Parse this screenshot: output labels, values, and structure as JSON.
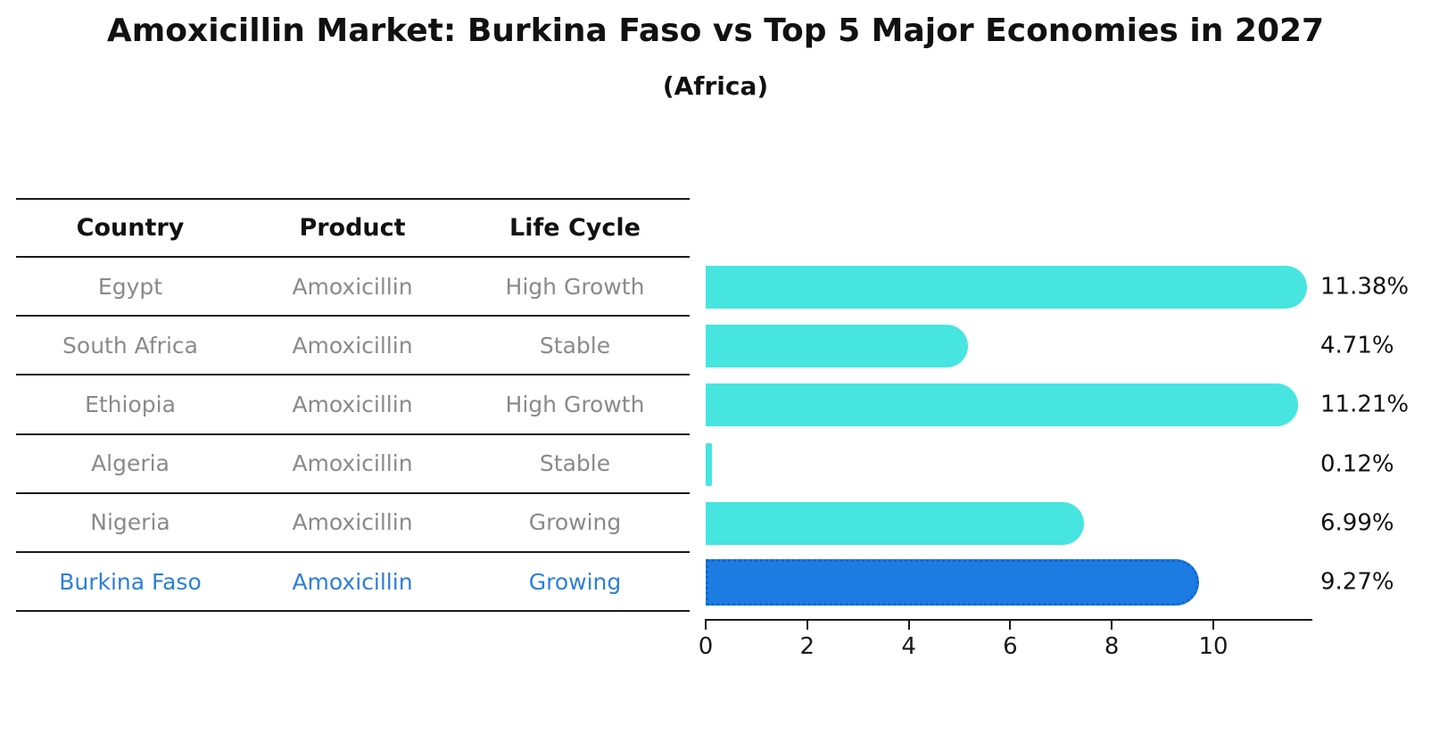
{
  "title": "Amoxicillin Market: Burkina Faso vs Top 5 Major Economies in 2027",
  "subtitle": "(Africa)",
  "table": {
    "headers": [
      "Country",
      "Product",
      "Life Cycle"
    ],
    "rows": [
      {
        "country": "Egypt",
        "product": "Amoxicillin",
        "life_cycle": "High Growth",
        "highlight": false
      },
      {
        "country": "South Africa",
        "product": "Amoxicillin",
        "life_cycle": "Stable",
        "highlight": false
      },
      {
        "country": "Ethiopia",
        "product": "Amoxicillin",
        "life_cycle": "High Growth",
        "highlight": false
      },
      {
        "country": "Algeria",
        "product": "Amoxicillin",
        "life_cycle": "Stable",
        "highlight": false
      },
      {
        "country": "Nigeria",
        "product": "Amoxicillin",
        "life_cycle": "Growing",
        "highlight": false
      },
      {
        "country": "Burkina Faso",
        "product": "Amoxicillin",
        "life_cycle": "Growing",
        "highlight": true
      }
    ]
  },
  "chart_data": {
    "type": "bar",
    "orientation": "horizontal",
    "title": "Amoxicillin Market: Burkina Faso vs Top 5 Major Economies in 2027",
    "subtitle": "(Africa)",
    "categories": [
      "Egypt",
      "South Africa",
      "Ethiopia",
      "Algeria",
      "Nigeria",
      "Burkina Faso"
    ],
    "values": [
      11.38,
      4.71,
      11.21,
      0.12,
      6.99,
      9.27
    ],
    "value_labels": [
      "11.38%",
      "4.71%",
      "11.21%",
      "0.12%",
      "6.99%",
      "9.27%"
    ],
    "x_ticks": [
      0,
      2,
      4,
      6,
      8,
      10
    ],
    "xlim": [
      0,
      11.95
    ],
    "grid": false,
    "legend": false,
    "highlight_index": 5,
    "bar_color": "#46E5E0",
    "highlight_bar_color": "#1C7CE2",
    "highlight_border_color": "#0F67D2"
  },
  "colors": {
    "background": "#FFFFFF",
    "title_text": "#111111",
    "table_line": "#1A1A1A",
    "header_text": "#111111",
    "cell_text": "#8A8A8A",
    "highlight_text": "#2B7FD9",
    "axis": "#1A1A1A",
    "tick_label": "#1A1A1A",
    "value_label": "#111111"
  }
}
